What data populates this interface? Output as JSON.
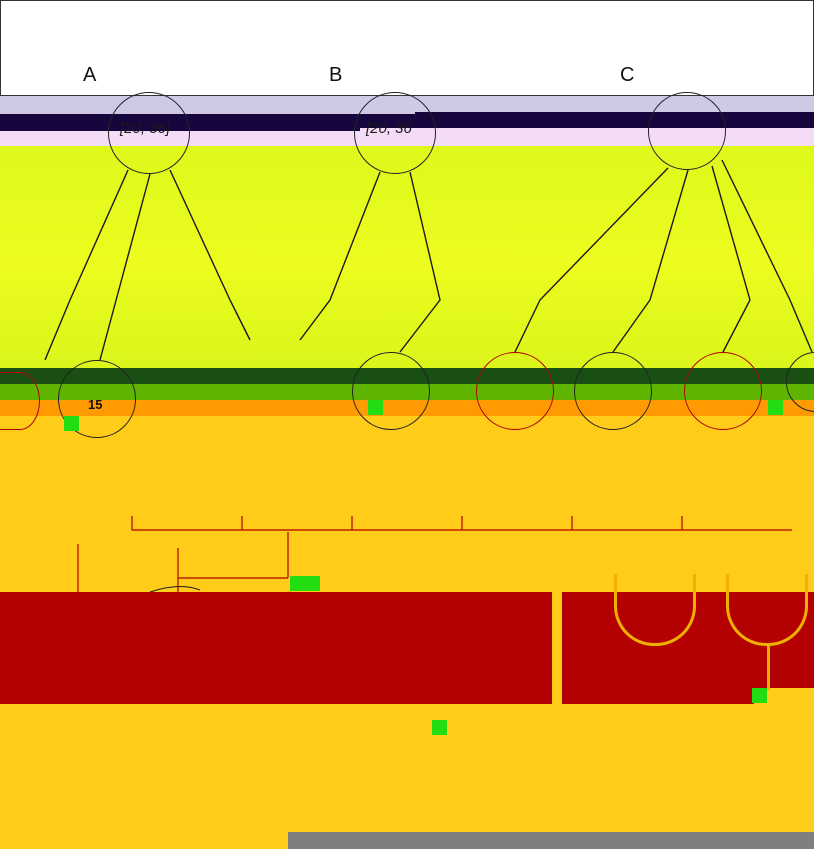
{
  "panels": [
    {
      "label": "A",
      "range_label": "[20, 36]",
      "node_label": "15"
    },
    {
      "label": "B",
      "range_label": "[20, 36"
    },
    {
      "label": "C"
    }
  ],
  "colors": {
    "background": "#ffffff",
    "header_lavender": "#cfc9e6",
    "header_navy": "#17063d",
    "header_pink": "#f4dcf7",
    "field_yellow": "#e6fb1e",
    "field_green": "#5fb400",
    "field_orange": "#ff9a00",
    "field_gold": "#ffcc1a",
    "band_red": "#b30000",
    "footer_gray": "#7f7f7f",
    "chip_green": "#22dd11"
  },
  "icons": [
    "green-square-marker-icon"
  ]
}
